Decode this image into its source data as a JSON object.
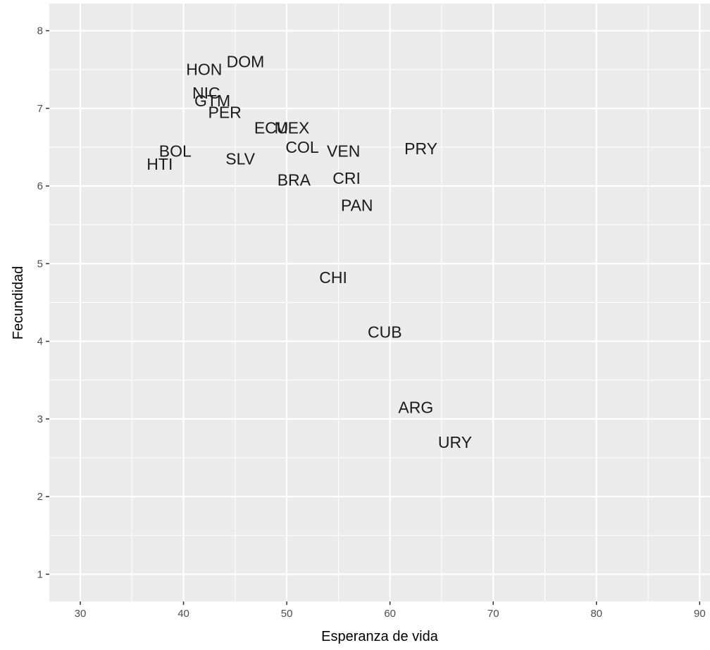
{
  "chart_data": {
    "type": "scatter",
    "title": "",
    "xlabel": "Esperanza de vida",
    "ylabel": "Fecundidad",
    "xlim": [
      27,
      91
    ],
    "ylim": [
      0.65,
      8.35
    ],
    "x_ticks": [
      30,
      40,
      50,
      60,
      70,
      80,
      90
    ],
    "y_ticks": [
      1,
      2,
      3,
      4,
      5,
      6,
      7,
      8
    ],
    "grid": true,
    "colors": {
      "panel": "#ebebeb",
      "grid": "#ffffff",
      "text": "#1a1a1a",
      "tick": "#4d4d4d"
    },
    "points": [
      {
        "label": "HON",
        "x": 42.0,
        "y": 7.5
      },
      {
        "label": "DOM",
        "x": 46.0,
        "y": 7.6
      },
      {
        "label": "NIC",
        "x": 42.2,
        "y": 7.2
      },
      {
        "label": "GTM",
        "x": 42.8,
        "y": 7.1
      },
      {
        "label": "PER",
        "x": 44.0,
        "y": 6.95
      },
      {
        "label": "ECU",
        "x": 48.5,
        "y": 6.75
      },
      {
        "label": "MEX",
        "x": 50.5,
        "y": 6.75
      },
      {
        "label": "BOL",
        "x": 39.2,
        "y": 6.45
      },
      {
        "label": "COL",
        "x": 51.5,
        "y": 6.5
      },
      {
        "label": "VEN",
        "x": 55.5,
        "y": 6.45
      },
      {
        "label": "PRY",
        "x": 63.0,
        "y": 6.48
      },
      {
        "label": "SLV",
        "x": 45.5,
        "y": 6.35
      },
      {
        "label": "HTI",
        "x": 37.7,
        "y": 6.28
      },
      {
        "label": "BRA",
        "x": 50.7,
        "y": 6.08
      },
      {
        "label": "CRI",
        "x": 55.8,
        "y": 6.1
      },
      {
        "label": "PAN",
        "x": 56.8,
        "y": 5.75
      },
      {
        "label": "CHI",
        "x": 54.5,
        "y": 4.82
      },
      {
        "label": "CUB",
        "x": 59.5,
        "y": 4.12
      },
      {
        "label": "ARG",
        "x": 62.5,
        "y": 3.15
      },
      {
        "label": "URY",
        "x": 66.3,
        "y": 2.7
      }
    ]
  }
}
